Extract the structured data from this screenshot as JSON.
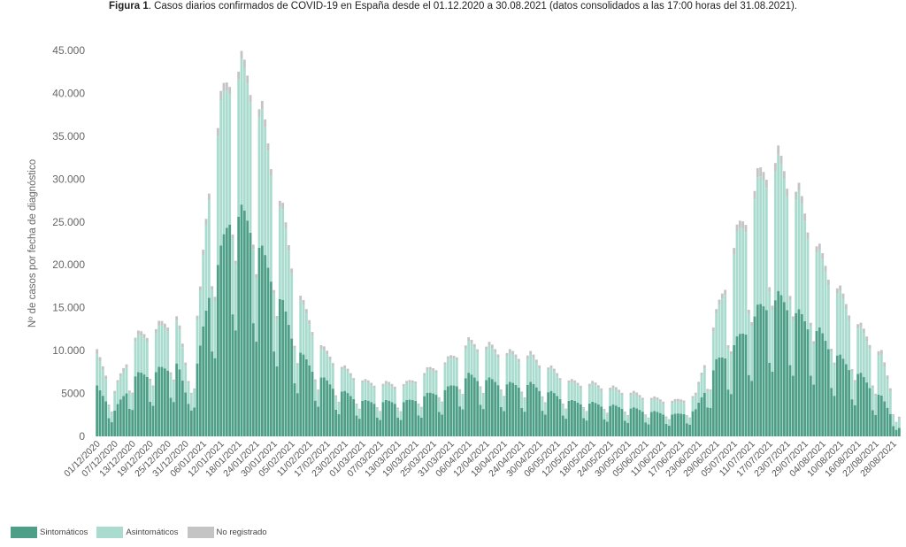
{
  "caption": {
    "label": "Figura 1",
    "text": ". Casos diarios confirmados de COVID-19 en España desde el 01.12.2020 a 30.08.2021 (datos consolidados a las 17:00 horas del 31.08.2021)."
  },
  "chart_data": {
    "type": "bar",
    "stacked": true,
    "ylabel": "Nº de casos por fecha de diagnóstico",
    "ylim": [
      0,
      45000
    ],
    "yticks": [
      0,
      5000,
      10000,
      15000,
      20000,
      25000,
      30000,
      35000,
      40000,
      45000
    ],
    "ytick_labels": [
      "0",
      "5000",
      "10.000",
      "15.000",
      "20.000",
      "25.000",
      "30.000",
      "35.000",
      "40.000",
      "45.000"
    ],
    "x_start": "2020-12-01",
    "x_end": "2021-08-30",
    "xtick_labels": [
      "01/12/2020",
      "07/12/2020",
      "13/12/2020",
      "19/12/2020",
      "25/12/2020",
      "31/12/2020",
      "06/01/2021",
      "12/01/2021",
      "18/01/2021",
      "24/01/2021",
      "30/01/2021",
      "05/02/2021",
      "11/02/2021",
      "17/02/2021",
      "23/02/2021",
      "01/03/2021",
      "07/03/2021",
      "13/03/2021",
      "19/03/2021",
      "25/03/2021",
      "31/03/2021",
      "06/04/2021",
      "12/04/2021",
      "18/04/2021",
      "24/04/2021",
      "30/04/2021",
      "06/05/2021",
      "12/05/2021",
      "18/05/2021",
      "24/05/2021",
      "30/05/2021",
      "05/06/2021",
      "11/06/2021",
      "17/06/2021",
      "23/06/2021",
      "29/06/2021",
      "05/07/2021",
      "11/07/2021",
      "17/07/2021",
      "23/07/2021",
      "29/07/2021",
      "04/08/2021",
      "10/08/2021",
      "16/08/2021",
      "22/08/2021",
      "28/08/2021"
    ],
    "grid": false,
    "legend_position": "bottom-left",
    "series": [
      {
        "name": "Sintomáticos",
        "color": "#4e9f87"
      },
      {
        "name": "Asintomáticos",
        "color": "#a9dccf"
      },
      {
        "name": "No registrado",
        "color": "#c4c4c4"
      }
    ],
    "keypoints": [
      [
        "2020-12-01",
        5600,
        3500,
        500
      ],
      [
        "2020-12-07",
        3000,
        2000,
        300
      ],
      [
        "2020-12-14",
        7000,
        4000,
        500
      ],
      [
        "2020-12-21",
        7500,
        4500,
        500
      ],
      [
        "2020-12-28",
        8500,
        5000,
        500
      ],
      [
        "2021-01-01",
        4000,
        2500,
        300
      ],
      [
        "2021-01-05",
        10000,
        6000,
        500
      ],
      [
        "2021-01-08",
        17000,
        12000,
        800
      ],
      [
        "2021-01-12",
        21000,
        16000,
        1000
      ],
      [
        "2021-01-15",
        26000,
        16000,
        900
      ],
      [
        "2021-01-19",
        25500,
        16000,
        900
      ],
      [
        "2021-01-22",
        25000,
        16000,
        900
      ],
      [
        "2021-01-26",
        21000,
        15000,
        900
      ],
      [
        "2021-01-29",
        19000,
        13000,
        800
      ],
      [
        "2021-02-02",
        15000,
        10000,
        700
      ],
      [
        "2021-02-05",
        12000,
        8000,
        600
      ],
      [
        "2021-02-09",
        9000,
        5500,
        500
      ],
      [
        "2021-02-16",
        6500,
        3000,
        400
      ],
      [
        "2021-02-23",
        5000,
        2500,
        300
      ],
      [
        "2021-03-02",
        4000,
        2000,
        300
      ],
      [
        "2021-03-09",
        4000,
        1800,
        300
      ],
      [
        "2021-03-16",
        4000,
        1800,
        300
      ],
      [
        "2021-03-23",
        4800,
        2500,
        300
      ],
      [
        "2021-03-30",
        5500,
        3000,
        300
      ],
      [
        "2021-04-06",
        7000,
        3500,
        400
      ],
      [
        "2021-04-13",
        6500,
        3500,
        400
      ],
      [
        "2021-04-20",
        6000,
        3200,
        400
      ],
      [
        "2021-04-27",
        6000,
        3000,
        400
      ],
      [
        "2021-05-04",
        5000,
        2500,
        300
      ],
      [
        "2021-05-11",
        4000,
        2000,
        300
      ],
      [
        "2021-05-18",
        3800,
        2000,
        300
      ],
      [
        "2021-05-25",
        3500,
        1800,
        300
      ],
      [
        "2021-06-01",
        3200,
        1500,
        300
      ],
      [
        "2021-06-08",
        2800,
        1300,
        300
      ],
      [
        "2021-06-15",
        2500,
        1300,
        300
      ],
      [
        "2021-06-22",
        3000,
        1500,
        300
      ],
      [
        "2021-06-29",
        8500,
        5000,
        500
      ],
      [
        "2021-07-06",
        11000,
        11500,
        800
      ],
      [
        "2021-07-13",
        14500,
        14000,
        1000
      ],
      [
        "2021-07-16",
        15500,
        15000,
        1000
      ],
      [
        "2021-07-20",
        16000,
        15000,
        1000
      ],
      [
        "2021-07-23",
        15500,
        14000,
        900
      ],
      [
        "2021-07-27",
        14000,
        13000,
        900
      ],
      [
        "2021-08-03",
        12000,
        8500,
        700
      ],
      [
        "2021-08-10",
        9000,
        7000,
        600
      ],
      [
        "2021-08-17",
        7000,
        5000,
        500
      ],
      [
        "2021-08-24",
        4500,
        4500,
        500
      ],
      [
        "2021-08-30",
        1000,
        1000,
        300
      ]
    ]
  }
}
